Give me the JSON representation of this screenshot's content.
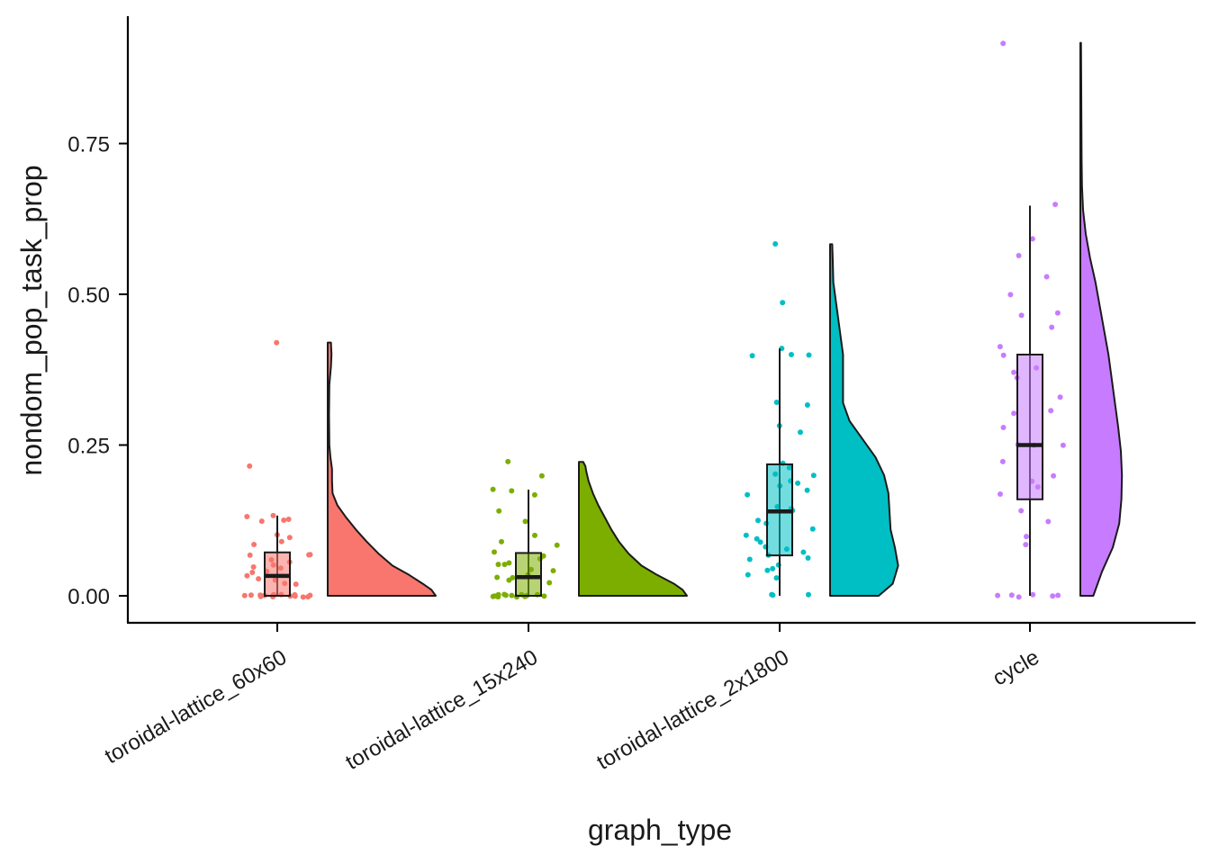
{
  "chart_data": {
    "type": "raincloud",
    "xlabel": "graph_type",
    "ylabel": "nondom_pop_task_prop",
    "ylim": [
      -0.045,
      0.945
    ],
    "yticks": [
      0.0,
      0.25,
      0.5,
      0.75
    ],
    "ytick_labels": [
      "0.00",
      "0.25",
      "0.50",
      "0.75"
    ],
    "grid": false,
    "legend": "none",
    "groups": [
      {
        "name": "toroidal-lattice_60x60",
        "color": "#F8766D",
        "box": {
          "min": 0.0,
          "q1": 0.0,
          "median": 0.033,
          "q3": 0.072,
          "max": 0.133
        },
        "points": [
          0.42,
          0.214,
          0.133,
          0.133,
          0.125,
          0.125,
          0.125,
          0.1,
          0.095,
          0.09,
          0.083,
          0.07,
          0.067,
          0.067,
          0.06,
          0.055,
          0.05,
          0.05,
          0.045,
          0.04,
          0.04,
          0.035,
          0.03,
          0.025,
          0.02,
          0.02,
          0.0,
          0.0,
          0.0,
          0.0,
          0.0,
          0.0,
          0.0,
          0.0,
          0.0,
          0.0,
          0.0,
          0.0,
          0.0,
          0.0,
          0.0,
          0.0
        ],
        "density": [
          [
            0.0,
            1.0
          ],
          [
            0.01,
            0.96
          ],
          [
            0.02,
            0.88
          ],
          [
            0.035,
            0.75
          ],
          [
            0.05,
            0.6
          ],
          [
            0.07,
            0.47
          ],
          [
            0.09,
            0.36
          ],
          [
            0.11,
            0.26
          ],
          [
            0.13,
            0.17
          ],
          [
            0.15,
            0.09
          ],
          [
            0.17,
            0.045
          ],
          [
            0.19,
            0.04
          ],
          [
            0.21,
            0.04
          ],
          [
            0.23,
            0.025
          ],
          [
            0.25,
            0.015
          ],
          [
            0.3,
            0.012
          ],
          [
            0.35,
            0.015
          ],
          [
            0.38,
            0.03
          ],
          [
            0.4,
            0.035
          ],
          [
            0.42,
            0.03
          ]
        ]
      },
      {
        "name": "toroidal-lattice_15x240",
        "color": "#7CAE00",
        "box": {
          "min": 0.0,
          "q1": 0.0,
          "median": 0.031,
          "q3": 0.071,
          "max": 0.176
        },
        "points": [
          0.222,
          0.2,
          0.176,
          0.176,
          0.167,
          0.143,
          0.125,
          0.1,
          0.091,
          0.083,
          0.071,
          0.067,
          0.063,
          0.056,
          0.05,
          0.05,
          0.045,
          0.04,
          0.033,
          0.03,
          0.03,
          0.025,
          0.02,
          0.0,
          0.0,
          0.0,
          0.0,
          0.0,
          0.0,
          0.0,
          0.0,
          0.0,
          0.0,
          0.0,
          0.0,
          0.0
        ],
        "density": [
          [
            0.0,
            1.0
          ],
          [
            0.01,
            0.96
          ],
          [
            0.02,
            0.88
          ],
          [
            0.035,
            0.72
          ],
          [
            0.05,
            0.58
          ],
          [
            0.07,
            0.46
          ],
          [
            0.09,
            0.37
          ],
          [
            0.11,
            0.3
          ],
          [
            0.13,
            0.24
          ],
          [
            0.15,
            0.18
          ],
          [
            0.17,
            0.13
          ],
          [
            0.19,
            0.09
          ],
          [
            0.205,
            0.07
          ],
          [
            0.215,
            0.06
          ],
          [
            0.222,
            0.04
          ]
        ]
      },
      {
        "name": "toroidal-lattice_2x1800",
        "color": "#00BFC4",
        "box": {
          "min": 0.0,
          "q1": 0.067,
          "median": 0.14,
          "q3": 0.218,
          "max": 0.41
        },
        "points": [
          0.583,
          0.488,
          0.41,
          0.4,
          0.4,
          0.4,
          0.323,
          0.316,
          0.283,
          0.273,
          0.222,
          0.214,
          0.2,
          0.2,
          0.19,
          0.188,
          0.182,
          0.176,
          0.167,
          0.15,
          0.143,
          0.14,
          0.125,
          0.118,
          0.111,
          0.1,
          0.095,
          0.09,
          0.083,
          0.077,
          0.071,
          0.067,
          0.063,
          0.059,
          0.05,
          0.045,
          0.04,
          0.036,
          0.03,
          0.0,
          0.0,
          0.0
        ],
        "density": [
          [
            0.0,
            0.45
          ],
          [
            0.02,
            0.58
          ],
          [
            0.05,
            0.63
          ],
          [
            0.08,
            0.6
          ],
          [
            0.11,
            0.56
          ],
          [
            0.14,
            0.55
          ],
          [
            0.17,
            0.54
          ],
          [
            0.2,
            0.5
          ],
          [
            0.23,
            0.42
          ],
          [
            0.26,
            0.3
          ],
          [
            0.29,
            0.18
          ],
          [
            0.32,
            0.12
          ],
          [
            0.36,
            0.12
          ],
          [
            0.4,
            0.12
          ],
          [
            0.44,
            0.09
          ],
          [
            0.48,
            0.06
          ],
          [
            0.52,
            0.03
          ],
          [
            0.555,
            0.025
          ],
          [
            0.583,
            0.02
          ]
        ]
      },
      {
        "name": "cycle",
        "color": "#C77CFF",
        "box": {
          "min": 0.0,
          "q1": 0.16,
          "median": 0.25,
          "q3": 0.4,
          "max": 0.647
        },
        "points": [
          0.917,
          0.647,
          0.591,
          0.563,
          0.529,
          0.5,
          0.471,
          0.467,
          0.445,
          0.412,
          0.4,
          0.38,
          0.37,
          0.36,
          0.33,
          0.308,
          0.303,
          0.28,
          0.25,
          0.25,
          0.25,
          0.222,
          0.2,
          0.19,
          0.18,
          0.167,
          0.143,
          0.125,
          0.1,
          0.083,
          0.0,
          0.0,
          0.0,
          0.0,
          0.0,
          0.0
        ],
        "density": [
          [
            0.0,
            0.12
          ],
          [
            0.04,
            0.2
          ],
          [
            0.08,
            0.3
          ],
          [
            0.12,
            0.36
          ],
          [
            0.16,
            0.38
          ],
          [
            0.2,
            0.385
          ],
          [
            0.24,
            0.375
          ],
          [
            0.28,
            0.35
          ],
          [
            0.32,
            0.32
          ],
          [
            0.36,
            0.29
          ],
          [
            0.4,
            0.26
          ],
          [
            0.44,
            0.22
          ],
          [
            0.48,
            0.18
          ],
          [
            0.52,
            0.14
          ],
          [
            0.56,
            0.09
          ],
          [
            0.6,
            0.05
          ],
          [
            0.64,
            0.025
          ],
          [
            0.68,
            0.015
          ],
          [
            0.72,
            0.012
          ],
          [
            0.78,
            0.01
          ],
          [
            0.85,
            0.008
          ],
          [
            0.917,
            0.006
          ]
        ]
      }
    ]
  }
}
